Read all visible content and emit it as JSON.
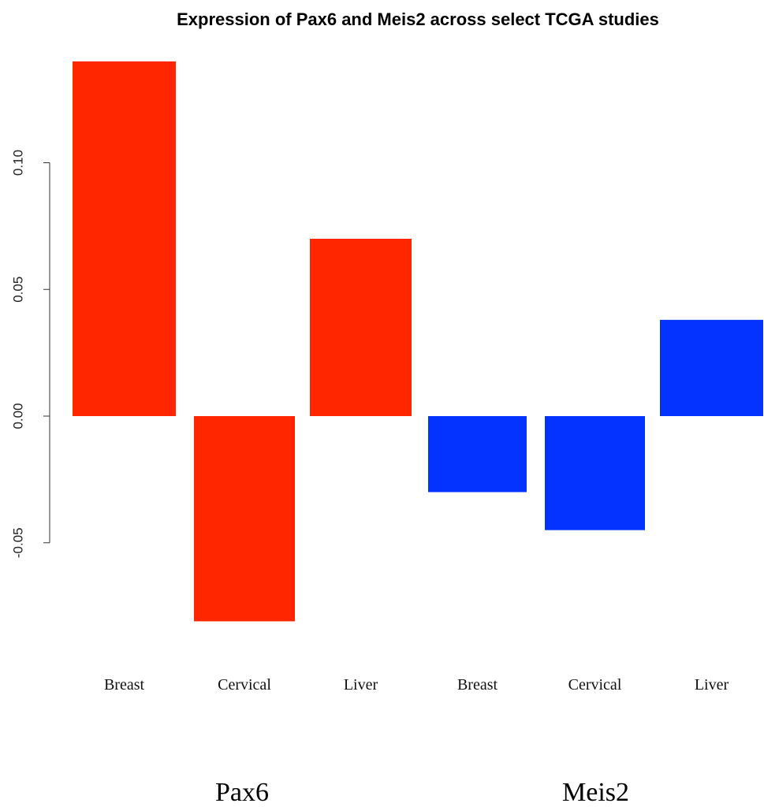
{
  "chart_data": {
    "type": "bar",
    "title": "Expression of Pax6 and Meis2 across select TCGA studies",
    "xlabel": "",
    "ylabel": "",
    "ylim": [
      -0.09,
      0.14
    ],
    "yticks": [
      "-0.05",
      "0.00",
      "0.05",
      "0.10"
    ],
    "grid": false,
    "legend": "none",
    "groups": [
      {
        "name": "Pax6",
        "color": "#ff2600",
        "categories": [
          "Breast",
          "Cervical",
          "Liver"
        ],
        "values": [
          0.14,
          -0.081,
          0.07
        ]
      },
      {
        "name": "Meis2",
        "color": "#0433ff",
        "categories": [
          "Breast",
          "Cervical",
          "Liver"
        ],
        "values": [
          -0.03,
          -0.045,
          0.038
        ]
      }
    ]
  }
}
